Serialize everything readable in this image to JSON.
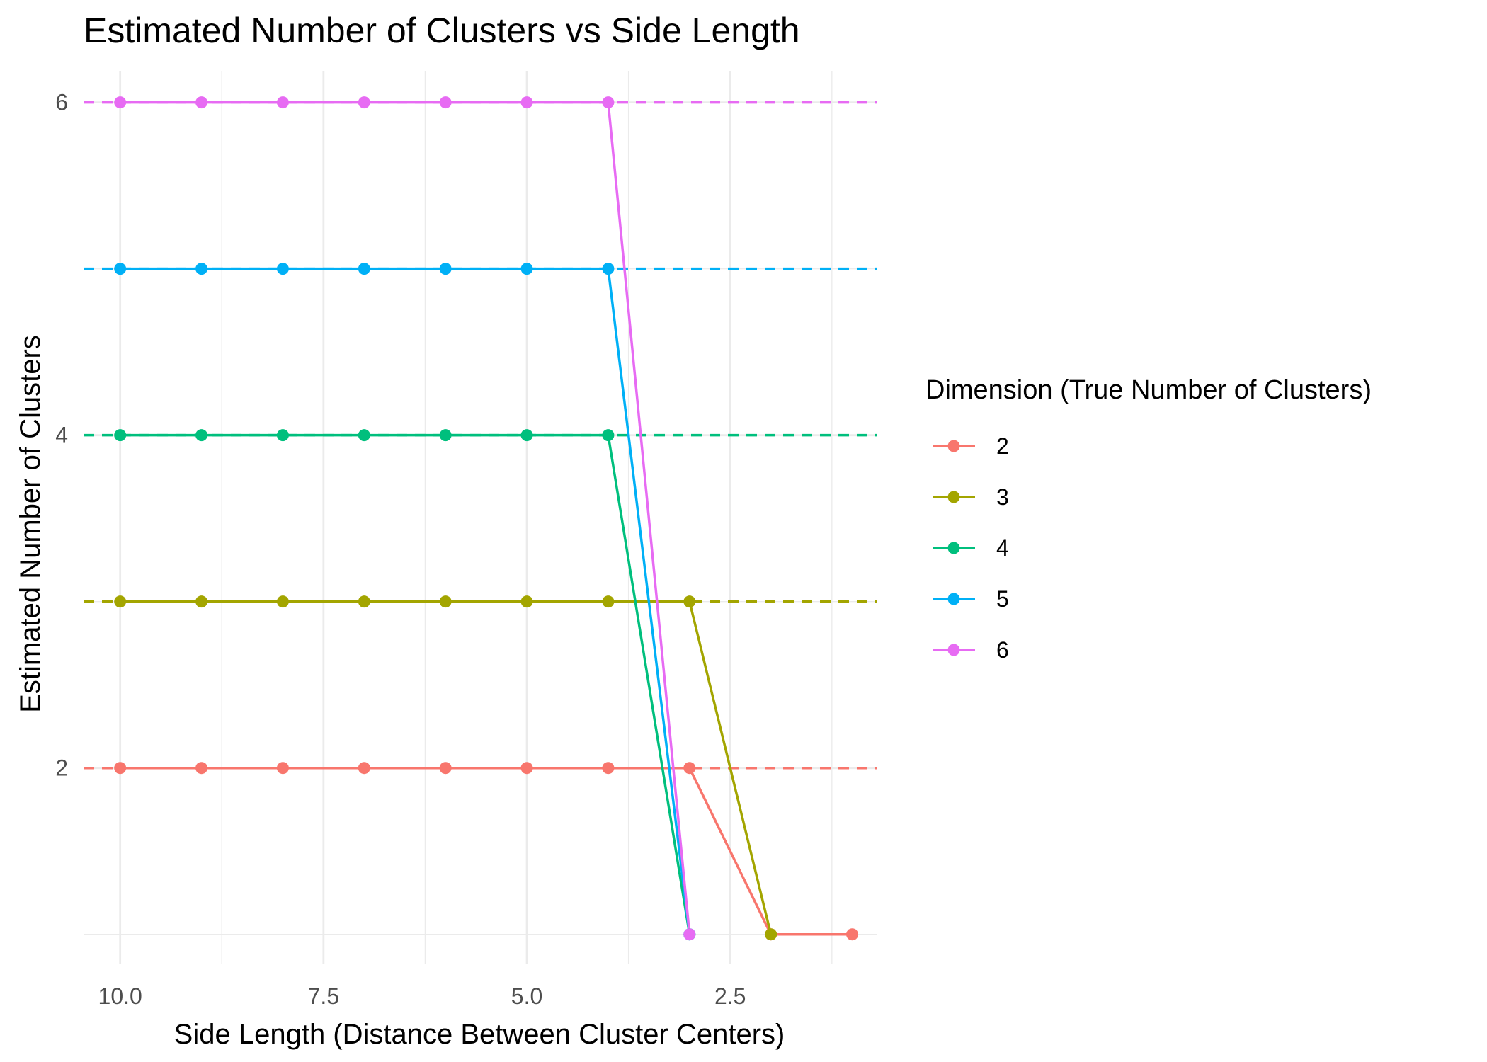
{
  "chart_data": {
    "type": "line",
    "title": "Estimated Number of Clusters vs Side Length",
    "xlabel": "Side Length (Distance Between Cluster Centers)",
    "ylabel": "Estimated Number of Clusters",
    "x_reversed": true,
    "xlim": [
      0.7,
      10.45
    ],
    "ylim": [
      0.82,
      6.19
    ],
    "x_ticks": [
      10.0,
      7.5,
      5.0,
      2.5
    ],
    "x_tick_labels": [
      "10.0",
      "7.5",
      "5.0",
      "2.5"
    ],
    "x_minor_ticks": [
      8.75,
      6.25,
      3.75,
      1.25
    ],
    "y_ticks": [
      2,
      4,
      6
    ],
    "y_tick_labels": [
      "2",
      "4",
      "6"
    ],
    "y_minor_ticks": [
      1,
      3,
      5
    ],
    "grid": true,
    "legend": {
      "title": "Dimension (True Number of Clusters)",
      "position": "right"
    },
    "x": [
      10,
      9,
      8,
      7,
      6,
      5,
      4,
      3,
      2,
      1
    ],
    "series": [
      {
        "name": "2",
        "color": "#F8766D",
        "values": [
          2,
          2,
          2,
          2,
          2,
          2,
          2,
          2,
          1,
          1
        ],
        "true_value": 2
      },
      {
        "name": "3",
        "color": "#A3A500",
        "values": [
          3,
          3,
          3,
          3,
          3,
          3,
          3,
          3,
          1,
          null
        ],
        "true_value": 3
      },
      {
        "name": "4",
        "color": "#00BF7D",
        "values": [
          4,
          4,
          4,
          4,
          4,
          4,
          4,
          1,
          null,
          null
        ],
        "true_value": 4
      },
      {
        "name": "5",
        "color": "#00B0F6",
        "values": [
          5,
          5,
          5,
          5,
          5,
          5,
          5,
          1,
          null,
          null
        ],
        "true_value": 5
      },
      {
        "name": "6",
        "color": "#E76BF3",
        "values": [
          6,
          6,
          6,
          6,
          6,
          6,
          6,
          1,
          null,
          null
        ],
        "true_value": 6
      }
    ]
  }
}
